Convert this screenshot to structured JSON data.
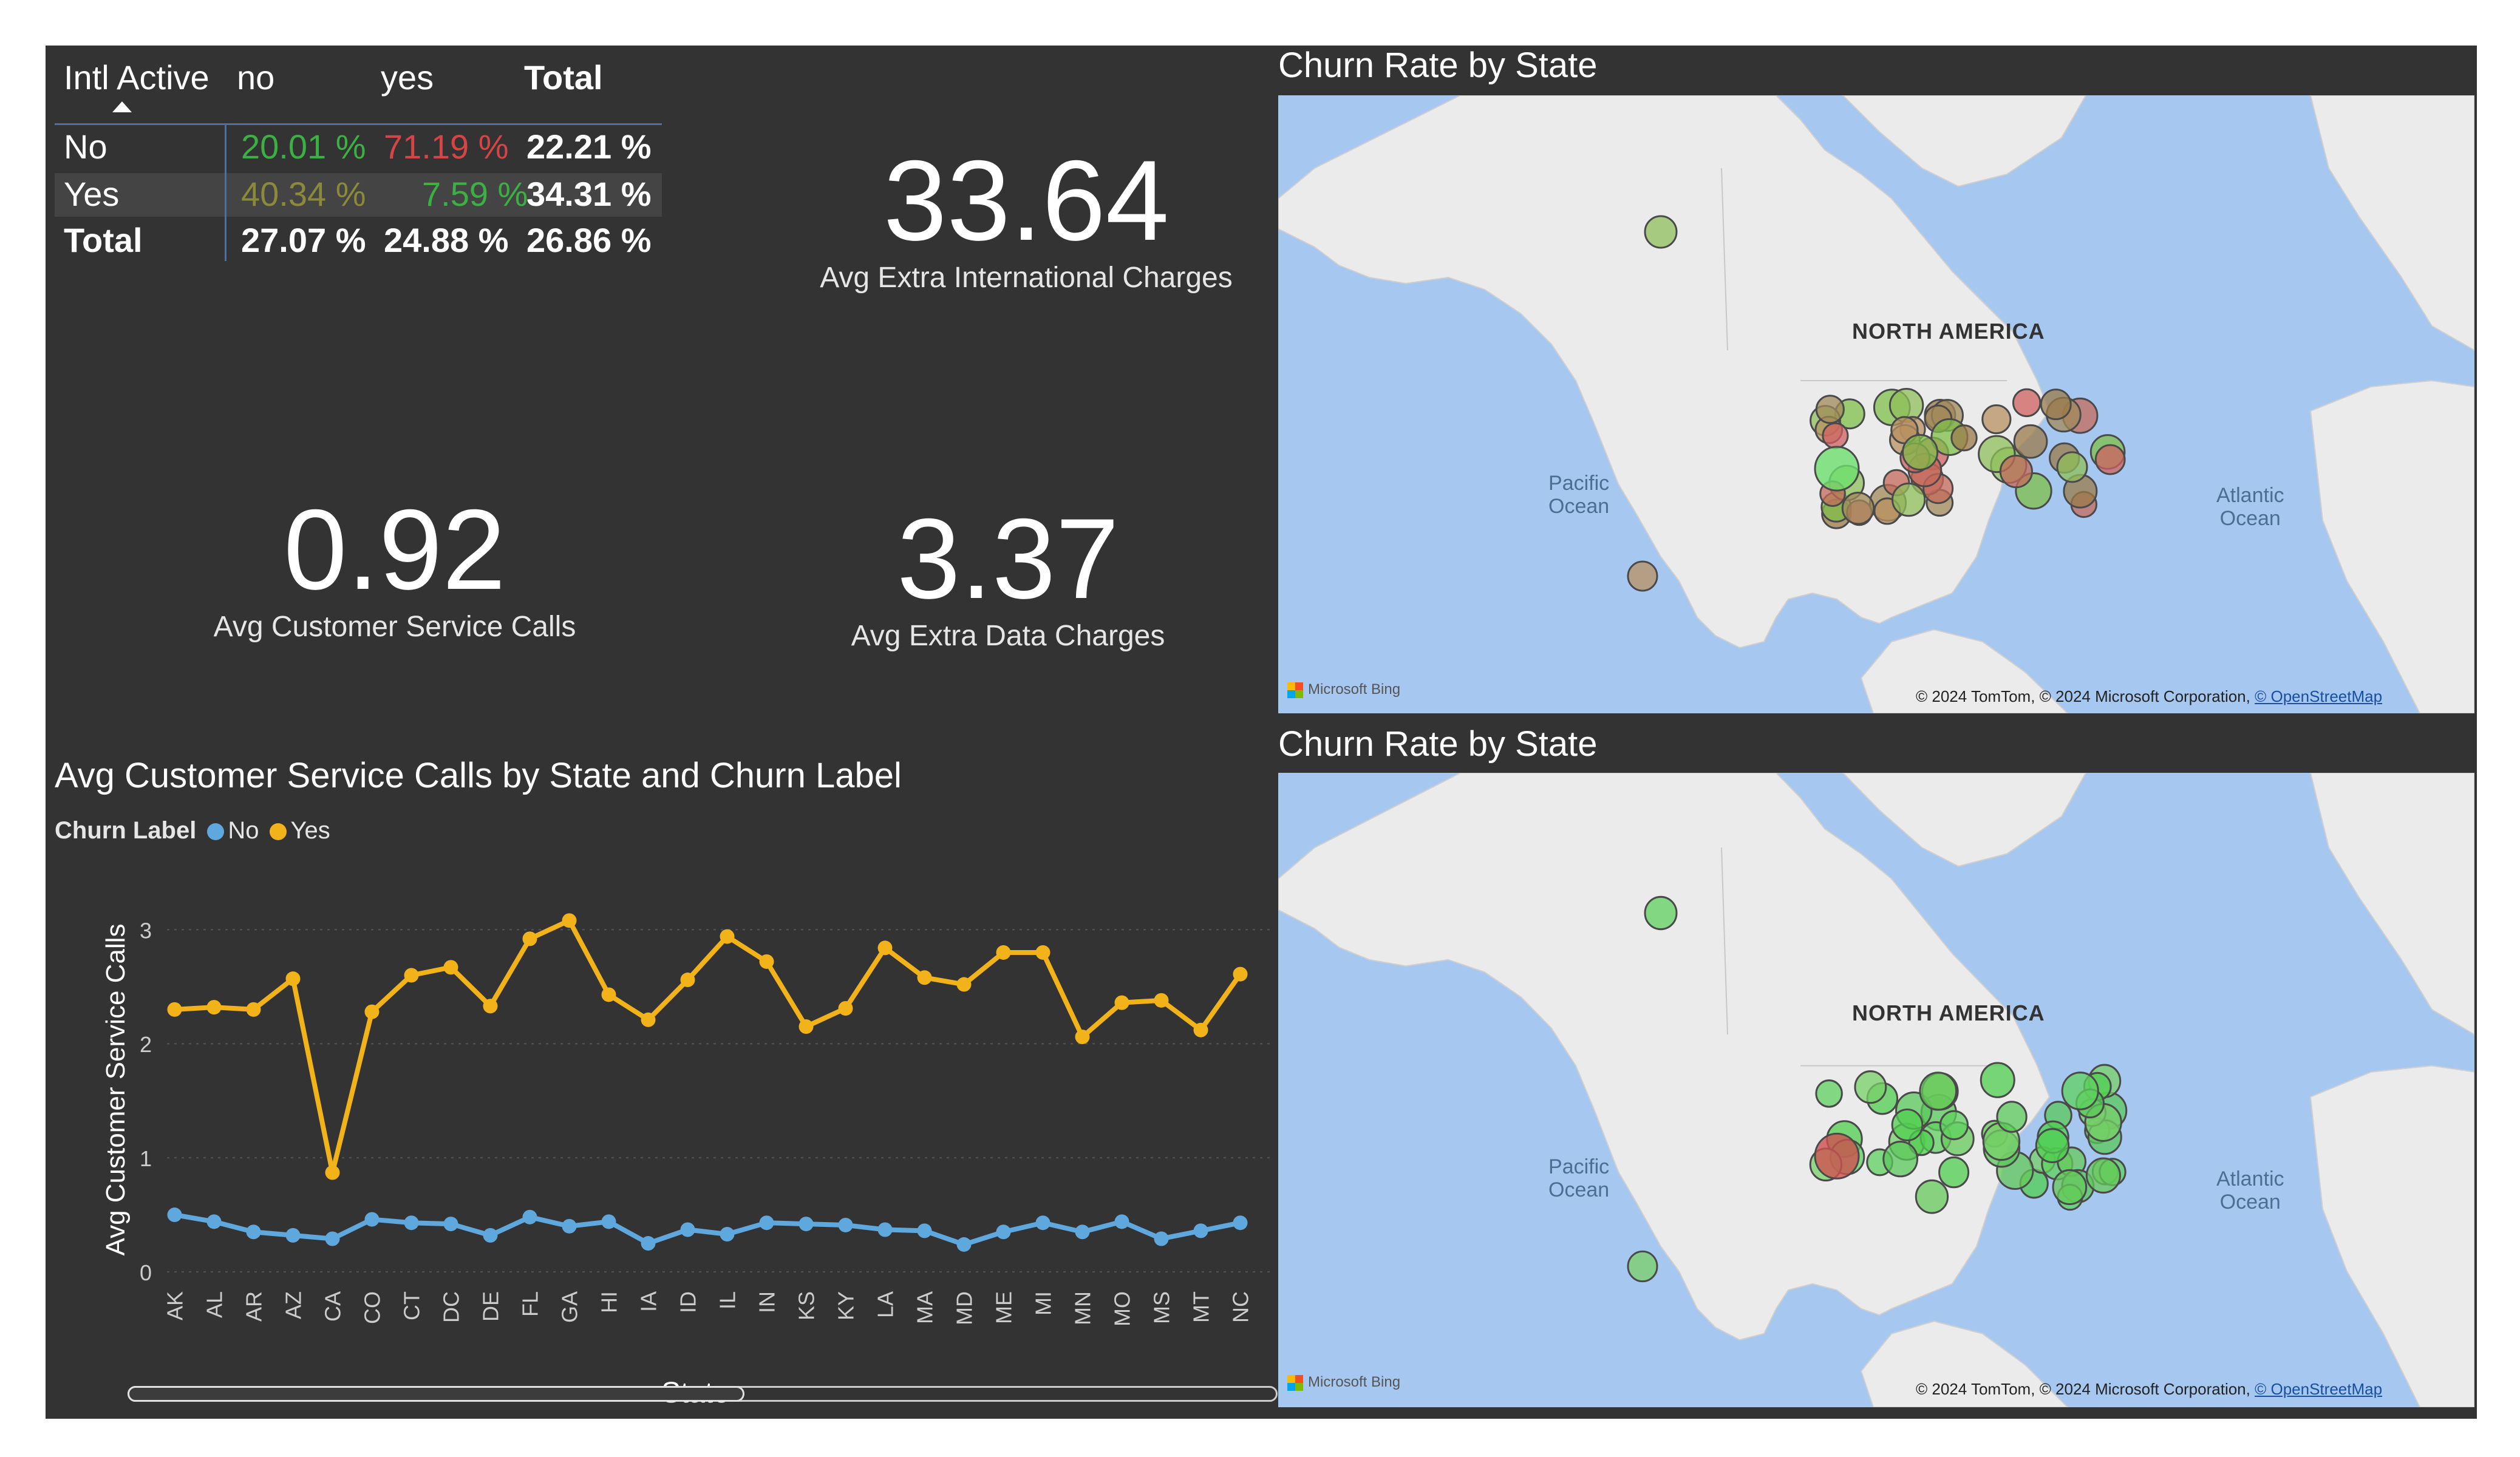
{
  "matrix": {
    "corner": "Intl Active",
    "col_headers": [
      "no",
      "yes",
      "Total"
    ],
    "rows": [
      {
        "label": "No",
        "values": [
          "20.01 %",
          "71.19 %",
          "22.21 %"
        ],
        "colors": [
          "#3cb043",
          "#d64545",
          "#ffffff"
        ]
      },
      {
        "label": "Yes",
        "values": [
          "40.34 %",
          "7.59 %",
          "34.31 %"
        ],
        "colors": [
          "#8a8a3a",
          "#3cb043",
          "#ffffff"
        ]
      },
      {
        "label": "Total",
        "values": [
          "27.07 %",
          "24.88 %",
          "26.86 %"
        ],
        "colors": [
          "#ffffff",
          "#ffffff",
          "#ffffff"
        ]
      }
    ]
  },
  "kpis": {
    "intl": {
      "value": "33.64",
      "label": "Avg Extra International Charges"
    },
    "calls": {
      "value": "0.92",
      "label": "Avg Customer Service Calls"
    },
    "data": {
      "value": "3.37",
      "label": "Avg Extra Data Charges"
    }
  },
  "maps": [
    {
      "title": "Churn Rate by State",
      "continent": "NORTH AMERICA",
      "pacific": "Pacific\nOcean",
      "atlantic": "Atlantic\nOcean",
      "bing": "Microsoft Bing",
      "attribution": "© 2024 TomTom, © 2024 Microsoft Corporation,",
      "osm": "© OpenStreetMap"
    },
    {
      "title": "Churn Rate by State",
      "continent": "NORTH AMERICA",
      "pacific": "Pacific\nOcean",
      "atlantic": "Atlantic\nOcean",
      "bing": "Microsoft Bing",
      "attribution": "© 2024 TomTom, © 2024 Microsoft Corporation,",
      "osm": "© OpenStreetMap"
    }
  ],
  "legend": {
    "title": "Churn Label",
    "items": [
      "No",
      "Yes"
    ]
  },
  "colors": {
    "no": "#5fa8de",
    "yes": "#f2b31a",
    "grid": "#555555",
    "axis_text": "#cccccc"
  },
  "chart_data": {
    "type": "line",
    "title": "Avg Customer Service Calls by State and Churn Label",
    "xlabel": "State",
    "ylabel": "Avg Customer Service Calls",
    "ylim": [
      0,
      3.3
    ],
    "yticks": [
      0,
      1,
      2,
      3
    ],
    "grid": true,
    "legend_position": "top-left",
    "categories": [
      "AK",
      "AL",
      "AR",
      "AZ",
      "CA",
      "CO",
      "CT",
      "DC",
      "DE",
      "FL",
      "GA",
      "HI",
      "IA",
      "ID",
      "IL",
      "IN",
      "KS",
      "KY",
      "LA",
      "MA",
      "MD",
      "ME",
      "MI",
      "MN",
      "MO",
      "MS",
      "MT",
      "NC"
    ],
    "series": [
      {
        "name": "No",
        "values": [
          0.5,
          0.44,
          0.35,
          0.32,
          0.29,
          0.46,
          0.43,
          0.42,
          0.32,
          0.48,
          0.4,
          0.44,
          0.25,
          0.37,
          0.33,
          0.43,
          0.42,
          0.41,
          0.37,
          0.36,
          0.24,
          0.35,
          0.43,
          0.35,
          0.44,
          0.29,
          0.36,
          0.43
        ]
      },
      {
        "name": "Yes",
        "values": [
          2.3,
          2.32,
          2.3,
          2.57,
          0.87,
          2.28,
          2.6,
          2.67,
          2.33,
          2.92,
          3.08,
          2.43,
          2.21,
          2.56,
          2.94,
          2.72,
          2.15,
          2.31,
          2.84,
          2.58,
          2.52,
          2.8,
          2.8,
          2.06,
          2.36,
          2.38,
          2.12,
          2.61
        ]
      }
    ]
  }
}
